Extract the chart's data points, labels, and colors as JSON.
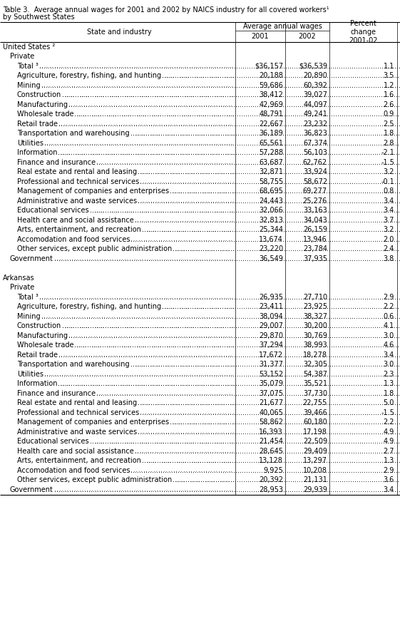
{
  "title_line1": "Table 3.  Average annual wages for 2001 and 2002 by NAICS industry for all covered workers¹",
  "title_line2": "by Southwest States",
  "col_header_left": "State and industry",
  "col_header_mid": "Average annual wages",
  "col_header_2001": "2001",
  "col_header_2002": "2002",
  "col_header_pct": "Percent\nchange\n2001-02",
  "rows": [
    {
      "label": "United States ²",
      "indent": 0,
      "val2001": "",
      "val2002": "",
      "pct": "",
      "dotted": false
    },
    {
      "label": "Private",
      "indent": 1,
      "val2001": "",
      "val2002": "",
      "pct": "",
      "dotted": false
    },
    {
      "label": "Total ³",
      "indent": 2,
      "val2001": "$36,157",
      "val2002": "$36,539",
      "pct": "1.1",
      "dotted": true
    },
    {
      "label": "Agriculture, forestry, fishing, and hunting",
      "indent": 2,
      "val2001": "20,188",
      "val2002": "20,890",
      "pct": "3.5",
      "dotted": true
    },
    {
      "label": "Mining",
      "indent": 2,
      "val2001": "59,686",
      "val2002": "60,392",
      "pct": "1.2",
      "dotted": true
    },
    {
      "label": "Construction",
      "indent": 2,
      "val2001": "38,412",
      "val2002": "39,027",
      "pct": "1.6",
      "dotted": true
    },
    {
      "label": "Manufacturing",
      "indent": 2,
      "val2001": "42,969",
      "val2002": "44,097",
      "pct": "2.6",
      "dotted": true
    },
    {
      "label": "Wholesale trade",
      "indent": 2,
      "val2001": "48,791",
      "val2002": "49,241",
      "pct": "0.9",
      "dotted": true
    },
    {
      "label": "Retail trade",
      "indent": 2,
      "val2001": "22,667",
      "val2002": "23,232",
      "pct": "2.5",
      "dotted": true
    },
    {
      "label": "Transportation and warehousing",
      "indent": 2,
      "val2001": "36,189",
      "val2002": "36,823",
      "pct": "1.8",
      "dotted": true
    },
    {
      "label": "Utilities",
      "indent": 2,
      "val2001": "65,561",
      "val2002": "67,374",
      "pct": "2.8",
      "dotted": true
    },
    {
      "label": "Information",
      "indent": 2,
      "val2001": "57,288",
      "val2002": "56,103",
      "pct": "-2.1",
      "dotted": true
    },
    {
      "label": "Finance and insurance",
      "indent": 2,
      "val2001": "63,687",
      "val2002": "62,762",
      "pct": "-1.5",
      "dotted": true
    },
    {
      "label": "Real estate and rental and leasing",
      "indent": 2,
      "val2001": "32,871",
      "val2002": "33,924",
      "pct": "3.2",
      "dotted": true
    },
    {
      "label": "Professional and technical services",
      "indent": 2,
      "val2001": "58,755",
      "val2002": "58,672",
      "pct": "-0.1",
      "dotted": true
    },
    {
      "label": "Management of companies and enterprises",
      "indent": 2,
      "val2001": "68,695",
      "val2002": "69,277",
      "pct": "0.8",
      "dotted": true
    },
    {
      "label": "Administrative and waste services",
      "indent": 2,
      "val2001": "24,443",
      "val2002": "25,276",
      "pct": "3.4",
      "dotted": true
    },
    {
      "label": "Educational services",
      "indent": 2,
      "val2001": "32,066",
      "val2002": "33,163",
      "pct": "3.4",
      "dotted": true
    },
    {
      "label": "Health care and social assistance",
      "indent": 2,
      "val2001": "32,813",
      "val2002": "34,043",
      "pct": "3.7",
      "dotted": true
    },
    {
      "label": "Arts, entertainment, and recreation",
      "indent": 2,
      "val2001": "25,344",
      "val2002": "26,159",
      "pct": "3.2",
      "dotted": true
    },
    {
      "label": "Accomodation and food services",
      "indent": 2,
      "val2001": "13,674",
      "val2002": "13,946",
      "pct": "2.0",
      "dotted": true
    },
    {
      "label": "Other services, except public administration",
      "indent": 2,
      "val2001": "23,220",
      "val2002": "23,784",
      "pct": "2.4",
      "dotted": true
    },
    {
      "label": "Government",
      "indent": 1,
      "val2001": "36,549",
      "val2002": "37,935",
      "pct": "3.8",
      "dotted": true
    },
    {
      "label": "",
      "indent": 0,
      "val2001": "",
      "val2002": "",
      "pct": "",
      "dotted": false,
      "spacer": true
    },
    {
      "label": "Arkansas",
      "indent": 0,
      "val2001": "",
      "val2002": "",
      "pct": "",
      "dotted": false
    },
    {
      "label": "Private",
      "indent": 1,
      "val2001": "",
      "val2002": "",
      "pct": "",
      "dotted": false
    },
    {
      "label": "Total ³",
      "indent": 2,
      "val2001": "26,935",
      "val2002": "27,710",
      "pct": "2.9",
      "dotted": true
    },
    {
      "label": "Agriculture, forestry, fishing, and hunting",
      "indent": 2,
      "val2001": "23,411",
      "val2002": "23,925",
      "pct": "2.2",
      "dotted": true
    },
    {
      "label": "Mining",
      "indent": 2,
      "val2001": "38,094",
      "val2002": "38,327",
      "pct": "0.6",
      "dotted": true
    },
    {
      "label": "Construction",
      "indent": 2,
      "val2001": "29,007",
      "val2002": "30,200",
      "pct": "4.1",
      "dotted": true
    },
    {
      "label": "Manufacturing",
      "indent": 2,
      "val2001": "29,870",
      "val2002": "30,769",
      "pct": "3.0",
      "dotted": true
    },
    {
      "label": "Wholesale trade",
      "indent": 2,
      "val2001": "37,294",
      "val2002": "38,993",
      "pct": "4.6",
      "dotted": true
    },
    {
      "label": "Retail trade",
      "indent": 2,
      "val2001": "17,672",
      "val2002": "18,278",
      "pct": "3.4",
      "dotted": true
    },
    {
      "label": "Transportation and warehousing",
      "indent": 2,
      "val2001": "31,377",
      "val2002": "32,305",
      "pct": "3.0",
      "dotted": true
    },
    {
      "label": "Utilities",
      "indent": 2,
      "val2001": "53,152",
      "val2002": "54,387",
      "pct": "2.3",
      "dotted": true
    },
    {
      "label": "Information",
      "indent": 2,
      "val2001": "35,079",
      "val2002": "35,521",
      "pct": "1.3",
      "dotted": true
    },
    {
      "label": "Finance and insurance",
      "indent": 2,
      "val2001": "37,075",
      "val2002": "37,730",
      "pct": "1.8",
      "dotted": true
    },
    {
      "label": "Real estate and rental and leasing",
      "indent": 2,
      "val2001": "21,677",
      "val2002": "22,755",
      "pct": "5.0",
      "dotted": true
    },
    {
      "label": "Professional and technical services",
      "indent": 2,
      "val2001": "40,065",
      "val2002": "39,466",
      "pct": "-1.5",
      "dotted": true
    },
    {
      "label": "Management of companies and enterprises",
      "indent": 2,
      "val2001": "58,862",
      "val2002": "60,180",
      "pct": "2.2",
      "dotted": true
    },
    {
      "label": "Administrative and waste services",
      "indent": 2,
      "val2001": "16,393",
      "val2002": "17,198",
      "pct": "4.9",
      "dotted": true
    },
    {
      "label": "Educational services",
      "indent": 2,
      "val2001": "21,454",
      "val2002": "22,509",
      "pct": "4.9",
      "dotted": true
    },
    {
      "label": "Health care and social assistance",
      "indent": 2,
      "val2001": "28,645",
      "val2002": "29,409",
      "pct": "2.7",
      "dotted": true
    },
    {
      "label": "Arts, entertainment, and recreation",
      "indent": 2,
      "val2001": "13,128",
      "val2002": "13,297",
      "pct": "1.3",
      "dotted": true
    },
    {
      "label": "Accomodation and food services",
      "indent": 2,
      "val2001": "9,925",
      "val2002": "10,208",
      "pct": "2.9",
      "dotted": true
    },
    {
      "label": "Other services, except public administration",
      "indent": 2,
      "val2001": "20,392",
      "val2002": "21,131",
      "pct": "3.6",
      "dotted": true
    },
    {
      "label": "Government",
      "indent": 1,
      "val2001": "28,953",
      "val2002": "29,939",
      "pct": "3.4",
      "dotted": true
    }
  ],
  "bg_color": "#ffffff",
  "text_color": "#000000",
  "font_size": 7.0,
  "line_color": "#000000"
}
